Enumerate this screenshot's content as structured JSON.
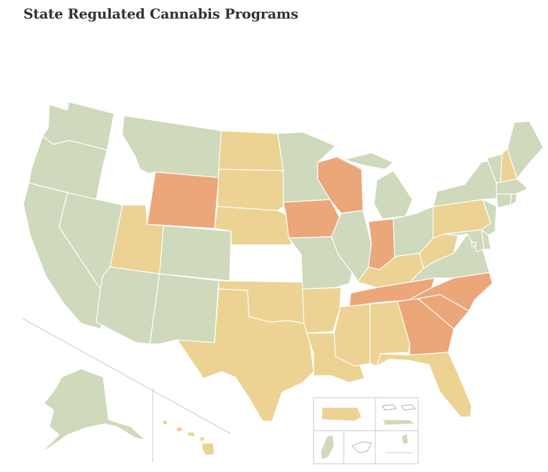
{
  "title": "State Regulated Cannabis Programs",
  "colors": {
    "green": "#cfd9bb",
    "yellow": "#ecd393",
    "orange": "#eba67a",
    "none": "#ffffff",
    "border": "#ffffff",
    "divider": "#c8c8c8"
  },
  "states": {
    "WA": "green",
    "OR": "green",
    "CA": "green",
    "NV": "green",
    "ID": "none",
    "MT": "green",
    "WY": "orange",
    "UT": "yellow",
    "AZ": "green",
    "CO": "green",
    "NM": "green",
    "ND": "yellow",
    "SD": "yellow",
    "NE": "yellow",
    "KS": "none",
    "OK": "yellow",
    "TX": "yellow",
    "MN": "green",
    "IA": "orange",
    "MO": "green",
    "AR": "yellow",
    "LA": "yellow",
    "WI": "orange",
    "IL": "green",
    "MI": "green",
    "IN": "orange",
    "OH": "green",
    "KY": "yellow",
    "TN": "orange",
    "MS": "yellow",
    "AL": "yellow",
    "GA": "orange",
    "FL": "yellow",
    "SC": "orange",
    "NC": "orange",
    "VA": "green",
    "WV": "yellow",
    "PA": "yellow",
    "NY": "green",
    "VT": "green",
    "NH": "yellow",
    "ME": "green",
    "MA": "green",
    "RI": "green",
    "CT": "green",
    "NJ": "green",
    "DE": "green",
    "MD": "green",
    "DC": "green",
    "AK": "green",
    "HI": "yellow"
  },
  "territories": {
    "PR": "yellow",
    "VI": "none",
    "USVI_main": "green",
    "GU": "green",
    "AS": "none",
    "MP": "green"
  }
}
